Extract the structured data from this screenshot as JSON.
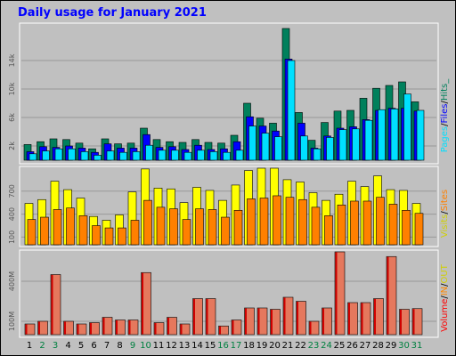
{
  "page": {
    "title": "Daily usage for January 2021"
  },
  "colors": {
    "hits": "#00805c",
    "files": "#0000ff",
    "pages": "#00e0ff",
    "sites": "#ff8000",
    "visits": "#ffff00",
    "kbytes": "#e06040",
    "in": "#ff8800",
    "out": "#d0d000",
    "weekend_label": "#008040",
    "weekday_label": "#000000",
    "legend_volume": "#ff0000",
    "legend_in": "#ff8800",
    "legend_out": "#d0d000",
    "legend_visits": "#d0d000",
    "legend_sites": "#ff8000",
    "legend_pages": "#00e0ff",
    "legend_files": "#0000ff",
    "legend_hits": "#00805c"
  },
  "chart_data": [
    {
      "type": "bar",
      "title": "Daily usage for January 2021",
      "ylabel": "Pages / Files / Hits",
      "ylim": [
        0,
        19000
      ],
      "y_ticks": [
        {
          "value": 2000,
          "label": "2k"
        },
        {
          "value": 6000,
          "label": "6k"
        },
        {
          "value": 10000,
          "label": "10k"
        },
        {
          "value": 14000,
          "label": "14k"
        }
      ],
      "categories": [
        "1",
        "2",
        "3",
        "4",
        "5",
        "6",
        "7",
        "8",
        "9",
        "10",
        "11",
        "12",
        "13",
        "14",
        "15",
        "16",
        "17",
        "18",
        "19",
        "20",
        "21",
        "22",
        "23",
        "24",
        "25",
        "26",
        "27",
        "28",
        "29",
        "30",
        "31"
      ],
      "weekend_days": [
        "2",
        "3",
        "9",
        "10",
        "16",
        "17",
        "23",
        "24",
        "30",
        "31"
      ],
      "series": [
        {
          "name": "Hits",
          "values": [
            2200,
            2600,
            3000,
            2900,
            2400,
            1600,
            3000,
            2300,
            2400,
            4500,
            2900,
            2600,
            2500,
            2900,
            2500,
            2400,
            3500,
            8000,
            5900,
            5200,
            18500,
            6700,
            2800,
            5300,
            6900,
            7000,
            8700,
            10100,
            10500,
            11000,
            8200
          ]
        },
        {
          "name": "Files",
          "values": [
            1200,
            1900,
            1800,
            2000,
            1700,
            1100,
            2300,
            1700,
            1700,
            3600,
            1800,
            1900,
            1500,
            2100,
            1500,
            1600,
            2600,
            6100,
            4800,
            4100,
            14200,
            5200,
            1700,
            3400,
            4500,
            4700,
            5700,
            7000,
            7300,
            7300,
            6900
          ]
        },
        {
          "name": "Pages",
          "values": [
            900,
            1300,
            1600,
            1600,
            1200,
            700,
            1300,
            1100,
            1200,
            2100,
            1400,
            1400,
            1100,
            1400,
            1200,
            1100,
            1400,
            4800,
            3800,
            3300,
            14000,
            3400,
            1600,
            3200,
            4300,
            4400,
            5600,
            7100,
            7200,
            9300,
            7000
          ]
        }
      ]
    },
    {
      "type": "bar",
      "ylabel": "Visits / Sites",
      "ylim": [
        0,
        1000
      ],
      "y_ticks": [
        {
          "value": 100,
          "label": "100"
        },
        {
          "value": 400,
          "label": "400"
        },
        {
          "value": 700,
          "label": "700"
        }
      ],
      "categories": [
        "1",
        "2",
        "3",
        "4",
        "5",
        "6",
        "7",
        "8",
        "9",
        "10",
        "11",
        "12",
        "13",
        "14",
        "15",
        "16",
        "17",
        "18",
        "19",
        "20",
        "21",
        "22",
        "23",
        "24",
        "25",
        "26",
        "27",
        "28",
        "29",
        "30",
        "31"
      ],
      "series": [
        {
          "name": "Visits",
          "values": [
            540,
            590,
            830,
            720,
            610,
            370,
            320,
            390,
            690,
            990,
            740,
            730,
            550,
            750,
            710,
            580,
            780,
            970,
            1000,
            1000,
            850,
            820,
            680,
            580,
            660,
            830,
            760,
            900,
            720,
            710,
            540
          ]
        },
        {
          "name": "Sites",
          "values": [
            330,
            360,
            460,
            480,
            380,
            250,
            220,
            220,
            320,
            580,
            490,
            470,
            330,
            470,
            460,
            360,
            450,
            600,
            610,
            640,
            620,
            590,
            490,
            380,
            520,
            570,
            570,
            620,
            530,
            450,
            410
          ]
        }
      ]
    },
    {
      "type": "bar",
      "ylabel": "Volume",
      "y_unit": "M",
      "ylim": [
        0,
        620
      ],
      "y_ticks": [
        {
          "value": 100,
          "label": "100M"
        },
        {
          "value": 400,
          "label": "400M"
        }
      ],
      "categories": [
        "1",
        "2",
        "3",
        "4",
        "5",
        "6",
        "7",
        "8",
        "9",
        "10",
        "11",
        "12",
        "13",
        "14",
        "15",
        "16",
        "17",
        "18",
        "19",
        "20",
        "21",
        "22",
        "23",
        "24",
        "25",
        "26",
        "27",
        "28",
        "29",
        "30",
        "31"
      ],
      "series": [
        {
          "name": "Volume",
          "values": [
            80,
            100,
            450,
            100,
            80,
            90,
            130,
            110,
            110,
            465,
            90,
            130,
            80,
            270,
            270,
            65,
            110,
            200,
            200,
            190,
            280,
            250,
            100,
            200,
            620,
            240,
            240,
            270,
            585,
            190,
            195
          ]
        }
      ]
    }
  ],
  "legend": {
    "top": {
      "pages": "Pages",
      "files": "Files",
      "hits": "Hits",
      "sep": "/",
      "underscore": "_"
    },
    "middle": {
      "visits": "Visits",
      "sites": "Sites",
      "sep": "/"
    },
    "bottom": {
      "volume": "Volume",
      "in": "IN",
      "out": "OUT",
      "sep": "/"
    }
  }
}
